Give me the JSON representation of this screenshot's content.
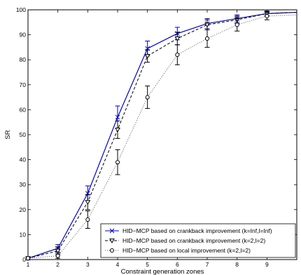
{
  "chart_data": {
    "type": "line",
    "title": "",
    "xlabel": "Constraint generation zones",
    "ylabel": "SR",
    "xlim": [
      1,
      10
    ],
    "ylim": [
      0,
      100
    ],
    "xticks": [
      1,
      2,
      3,
      4,
      5,
      6,
      7,
      8,
      9
    ],
    "yticks": [
      0,
      10,
      20,
      30,
      40,
      50,
      60,
      70,
      80,
      90,
      100
    ],
    "grid": false,
    "legend_position": "bottom-right",
    "series": [
      {
        "name": "HID−MCP based on crankback improvement (k=Inf,l=Inf)",
        "color": "#0000cc",
        "line_style": "solid",
        "marker": "x",
        "x": [
          1,
          2,
          3,
          4,
          5,
          6,
          7,
          8,
          9,
          10
        ],
        "y": [
          0.5,
          4.5,
          26.5,
          57,
          84.5,
          90.5,
          94.5,
          96.5,
          98.5,
          99
        ],
        "error": [
          0,
          1.5,
          3,
          4.5,
          3,
          2.5,
          2,
          1.5,
          1,
          0
        ]
      },
      {
        "name": "HID−MCP based on crankback improvement (k=2,l=2)",
        "color": "#000000",
        "line_style": "dashed",
        "marker": "triangle-down",
        "x": [
          1,
          2,
          3,
          4,
          5,
          6,
          7,
          8,
          9,
          10
        ],
        "y": [
          0.5,
          3.5,
          23,
          52,
          81.5,
          88.5,
          94,
          96,
          98.5,
          99
        ],
        "error": [
          0,
          1.5,
          3,
          3.5,
          2.5,
          2.5,
          2,
          1.5,
          1,
          0
        ]
      },
      {
        "name": "HID−MCP based on local improvement (k=2,l=2)",
        "color": "#555555",
        "line_style": "dotted",
        "marker": "circle",
        "x": [
          1,
          2,
          3,
          4,
          5,
          6,
          7,
          8,
          9,
          10
        ],
        "y": [
          0.5,
          1.5,
          16,
          39,
          65,
          82,
          88.5,
          94,
          97.5,
          98
        ],
        "error": [
          0,
          1,
          3.5,
          5,
          4.5,
          4,
          3.5,
          2.5,
          1.5,
          0
        ]
      }
    ]
  }
}
